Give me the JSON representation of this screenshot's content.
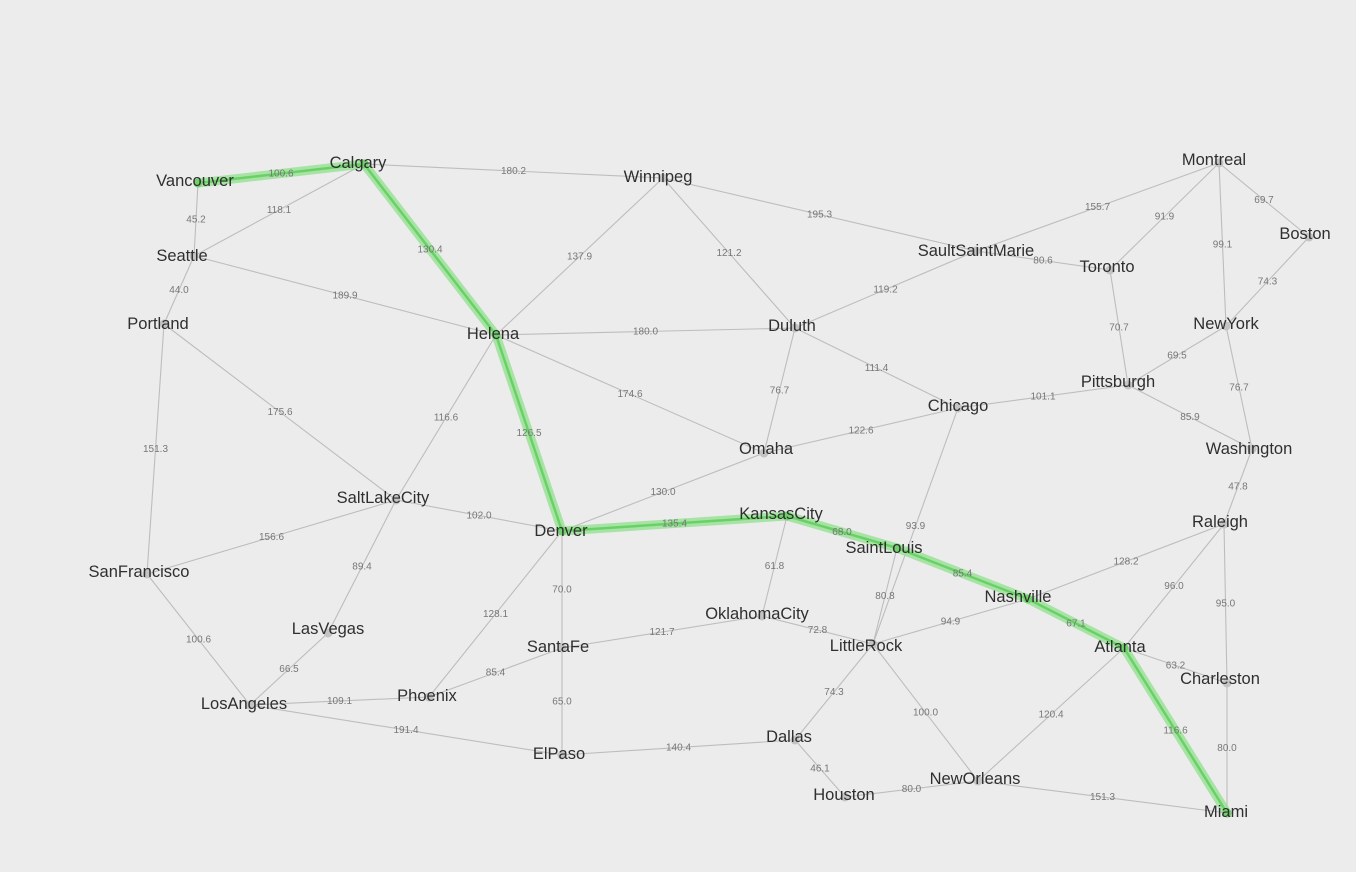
{
  "colors": {
    "background": "#ececec",
    "edge": "#bdbdbd",
    "highlight": "#6fd06c",
    "text": "#2f2f2f",
    "weight_text": "#777777"
  },
  "cities": [
    "Vancouver",
    "Calgary",
    "Winnipeg",
    "Montreal",
    "Boston",
    "Seattle",
    "SaultSaintMarie",
    "Toronto",
    "Portland",
    "Helena",
    "Duluth",
    "NewYork",
    "Pittsburgh",
    "Chicago",
    "Washington",
    "Omaha",
    "SaltLakeCity",
    "Denver",
    "KansasCity",
    "Raleigh",
    "SaintLouis",
    "SanFrancisco",
    "Nashville",
    "LasVegas",
    "OklahomaCity",
    "SantaFe",
    "LittleRock",
    "Atlanta",
    "Charleston",
    "Phoenix",
    "LosAngeles",
    "Dallas",
    "ElPaso",
    "NewOrleans",
    "Houston",
    "Miami"
  ],
  "edges": [
    {
      "a": "Vancouver",
      "b": "Calgary",
      "w": "100.6"
    },
    {
      "a": "Vancouver",
      "b": "Seattle",
      "w": "45.2"
    },
    {
      "a": "Seattle",
      "b": "Calgary",
      "w": "118.1"
    },
    {
      "a": "Calgary",
      "b": "Winnipeg",
      "w": "180.2"
    },
    {
      "a": "Calgary",
      "b": "Helena",
      "w": "130.4"
    },
    {
      "a": "Seattle",
      "b": "Portland",
      "w": "44.0"
    },
    {
      "a": "Seattle",
      "b": "Helena",
      "w": "189.9"
    },
    {
      "a": "Winnipeg",
      "b": "Helena",
      "w": "137.9"
    },
    {
      "a": "Winnipeg",
      "b": "Duluth",
      "w": "121.2"
    },
    {
      "a": "Winnipeg",
      "b": "SaultSaintMarie",
      "w": "195.3"
    },
    {
      "a": "SaultSaintMarie",
      "b": "Montreal",
      "w": "155.7"
    },
    {
      "a": "SaultSaintMarie",
      "b": "Toronto",
      "w": "80.6"
    },
    {
      "a": "SaultSaintMarie",
      "b": "Duluth",
      "w": "119.2"
    },
    {
      "a": "Montreal",
      "b": "Toronto",
      "w": "91.9"
    },
    {
      "a": "Montreal",
      "b": "Boston",
      "w": "69.7"
    },
    {
      "a": "Montreal",
      "b": "NewYork",
      "w": "99.1"
    },
    {
      "a": "Boston",
      "b": "NewYork",
      "w": "74.3"
    },
    {
      "a": "Toronto",
      "b": "Pittsburgh",
      "w": "70.7"
    },
    {
      "a": "NewYork",
      "b": "Pittsburgh",
      "w": "69.5"
    },
    {
      "a": "NewYork",
      "b": "Washington",
      "w": "76.7"
    },
    {
      "a": "Pittsburgh",
      "b": "Washington",
      "w": "85.9"
    },
    {
      "a": "Pittsburgh",
      "b": "Chicago",
      "w": "101.1"
    },
    {
      "a": "Portland",
      "b": "SaltLakeCity",
      "w": "175.6"
    },
    {
      "a": "Portland",
      "b": "SanFrancisco",
      "w": "151.3"
    },
    {
      "a": "Helena",
      "b": "Duluth",
      "w": "180.0"
    },
    {
      "a": "Helena",
      "b": "Omaha",
      "w": "174.6"
    },
    {
      "a": "Helena",
      "b": "SaltLakeCity",
      "w": "116.6"
    },
    {
      "a": "Helena",
      "b": "Denver",
      "w": "126.5"
    },
    {
      "a": "Duluth",
      "b": "Omaha",
      "w": "76.7"
    },
    {
      "a": "Duluth",
      "b": "Chicago",
      "w": "111.4"
    },
    {
      "a": "Omaha",
      "b": "Chicago",
      "w": "122.6"
    },
    {
      "a": "Omaha",
      "b": "Denver",
      "w": "130.0"
    },
    {
      "a": "Chicago",
      "b": "LittleRock",
      "w": "93.9"
    },
    {
      "a": "Washington",
      "b": "Raleigh",
      "w": "47.8"
    },
    {
      "a": "SaltLakeCity",
      "b": "Denver",
      "w": "102.0"
    },
    {
      "a": "SaltLakeCity",
      "b": "SanFrancisco",
      "w": "156.6"
    },
    {
      "a": "SaltLakeCity",
      "b": "LasVegas",
      "w": "89.4"
    },
    {
      "a": "Denver",
      "b": "KansasCity",
      "w": "135.4"
    },
    {
      "a": "Denver",
      "b": "SantaFe",
      "w": "70.0"
    },
    {
      "a": "Denver",
      "b": "Phoenix",
      "w": "128.1"
    },
    {
      "a": "KansasCity",
      "b": "SaintLouis",
      "w": "68.0"
    },
    {
      "a": "KansasCity",
      "b": "OklahomaCity",
      "w": "61.8"
    },
    {
      "a": "SaintLouis",
      "b": "Nashville",
      "w": "85.4"
    },
    {
      "a": "SaintLouis",
      "b": "LittleRock",
      "w": "80.8"
    },
    {
      "a": "Raleigh",
      "b": "Nashville",
      "w": "128.2"
    },
    {
      "a": "Raleigh",
      "b": "Atlanta",
      "w": "96.0"
    },
    {
      "a": "Raleigh",
      "b": "Charleston",
      "w": "95.0"
    },
    {
      "a": "SanFrancisco",
      "b": "LosAngeles",
      "w": "100.6"
    },
    {
      "a": "Nashville",
      "b": "Atlanta",
      "w": "67.1"
    },
    {
      "a": "Nashville",
      "b": "LittleRock",
      "w": "94.9"
    },
    {
      "a": "LasVegas",
      "b": "LosAngeles",
      "w": "66.5"
    },
    {
      "a": "OklahomaCity",
      "b": "SantaFe",
      "w": "121.7"
    },
    {
      "a": "OklahomaCity",
      "b": "LittleRock",
      "w": "72.8"
    },
    {
      "a": "SantaFe",
      "b": "Phoenix",
      "w": "85.4"
    },
    {
      "a": "SantaFe",
      "b": "ElPaso",
      "w": "65.0"
    },
    {
      "a": "LittleRock",
      "b": "Dallas",
      "w": "74.3"
    },
    {
      "a": "LittleRock",
      "b": "NewOrleans",
      "w": "100.0"
    },
    {
      "a": "Atlanta",
      "b": "Charleston",
      "w": "63.2"
    },
    {
      "a": "Atlanta",
      "b": "NewOrleans",
      "w": "120.4"
    },
    {
      "a": "Atlanta",
      "b": "Miami",
      "w": "116.6"
    },
    {
      "a": "Charleston",
      "b": "Miami",
      "w": "80.0"
    },
    {
      "a": "Phoenix",
      "b": "LosAngeles",
      "w": "109.1"
    },
    {
      "a": "LosAngeles",
      "b": "ElPaso",
      "w": "191.4"
    },
    {
      "a": "ElPaso",
      "b": "Dallas",
      "w": "140.4"
    },
    {
      "a": "Dallas",
      "b": "Houston",
      "w": "46.1"
    },
    {
      "a": "Houston",
      "b": "NewOrleans",
      "w": "80.0"
    },
    {
      "a": "NewOrleans",
      "b": "Miami",
      "w": "151.3"
    }
  ],
  "highlighted_path": [
    "Vancouver",
    "Calgary",
    "Helena",
    "Denver",
    "KansasCity",
    "SaintLouis",
    "Nashville",
    "Atlanta",
    "Miami"
  ]
}
